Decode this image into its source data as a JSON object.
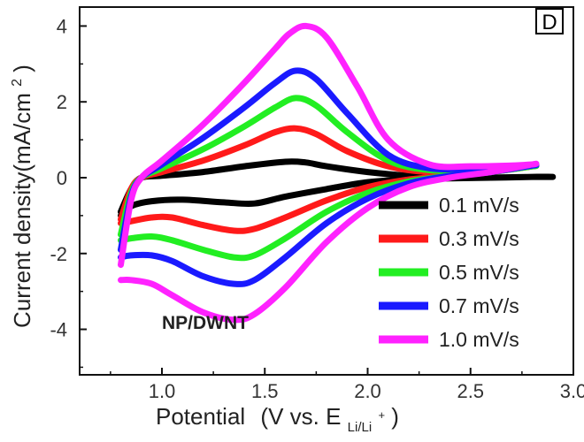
{
  "chart_data": {
    "type": "line",
    "panel_label": "D",
    "annotation": "NP/DWNT",
    "xlabel": "Potential",
    "xlabel_unit_prefix": "(V vs. E",
    "xlabel_unit_sub": "Li/Li",
    "xlabel_unit_sup": "+",
    "xlabel_unit_suffix": ")",
    "ylabel": "Current density(mA/cm",
    "ylabel_sup": "2",
    "ylabel_suffix": ")",
    "xlim": [
      0.6,
      3.0
    ],
    "ylim": [
      -5.2,
      4.5
    ],
    "x_ticks": [
      1.0,
      1.5,
      2.0,
      2.5,
      3.0
    ],
    "x_tick_labels": [
      "1.0",
      "1.5",
      "2.0",
      "2.5",
      "3.0"
    ],
    "y_ticks": [
      -4,
      -2,
      0,
      2,
      4
    ],
    "y_tick_labels": [
      "-4",
      "-2",
      "0",
      "2",
      "4"
    ],
    "grid": false,
    "legend_position": "bottom-right",
    "series": [
      {
        "name": "0.1 mV/s",
        "color": "#000000",
        "anodic": {
          "x": [
            0.8,
            0.85,
            0.9,
            1.0,
            1.2,
            1.4,
            1.6,
            1.7,
            1.8,
            2.0,
            2.2,
            2.4,
            2.6,
            2.8,
            2.9
          ],
          "y": [
            -0.9,
            -0.3,
            0.0,
            0.05,
            0.15,
            0.3,
            0.42,
            0.4,
            0.3,
            0.15,
            0.05,
            0.0,
            0.0,
            0.02,
            0.02
          ]
        },
        "cathodic": {
          "x": [
            2.8,
            2.6,
            2.4,
            2.2,
            2.0,
            1.8,
            1.6,
            1.45,
            1.3,
            1.1,
            0.95,
            0.85,
            0.8
          ],
          "y": [
            0.02,
            0.0,
            -0.02,
            -0.05,
            -0.12,
            -0.3,
            -0.5,
            -0.68,
            -0.65,
            -0.58,
            -0.62,
            -0.75,
            -1.0
          ]
        }
      },
      {
        "name": "0.3 mV/s",
        "color": "#ff1a1a",
        "anodic": {
          "x": [
            0.8,
            0.85,
            0.9,
            1.0,
            1.2,
            1.4,
            1.55,
            1.65,
            1.75,
            1.9,
            2.1,
            2.3,
            2.5,
            2.7,
            2.8
          ],
          "y": [
            -1.1,
            -0.3,
            0.0,
            0.15,
            0.45,
            0.85,
            1.2,
            1.3,
            1.15,
            0.7,
            0.3,
            0.15,
            0.2,
            0.25,
            0.3
          ]
        },
        "cathodic": {
          "x": [
            2.8,
            2.6,
            2.4,
            2.2,
            2.0,
            1.8,
            1.6,
            1.45,
            1.35,
            1.2,
            1.05,
            0.95,
            0.85,
            0.8
          ],
          "y": [
            0.3,
            0.15,
            0.05,
            -0.05,
            -0.25,
            -0.6,
            -1.05,
            -1.35,
            -1.4,
            -1.25,
            -1.05,
            -1.05,
            -1.15,
            -1.2
          ]
        }
      },
      {
        "name": "0.5 mV/s",
        "color": "#22ee22",
        "anodic": {
          "x": [
            0.8,
            0.85,
            0.9,
            1.0,
            1.2,
            1.4,
            1.55,
            1.65,
            1.75,
            1.9,
            2.1,
            2.3,
            2.5,
            2.7,
            2.8
          ],
          "y": [
            -1.5,
            -0.4,
            0.0,
            0.25,
            0.75,
            1.35,
            1.85,
            2.1,
            1.9,
            1.2,
            0.45,
            0.2,
            0.22,
            0.28,
            0.3
          ]
        },
        "cathodic": {
          "x": [
            2.8,
            2.6,
            2.4,
            2.2,
            2.0,
            1.8,
            1.6,
            1.45,
            1.35,
            1.2,
            1.05,
            0.95,
            0.85,
            0.8
          ],
          "y": [
            0.3,
            0.15,
            0.05,
            -0.1,
            -0.4,
            -0.9,
            -1.6,
            -2.05,
            -2.1,
            -1.9,
            -1.65,
            -1.55,
            -1.6,
            -1.65
          ]
        }
      },
      {
        "name": "0.7 mV/s",
        "color": "#1a1aff",
        "anodic": {
          "x": [
            0.8,
            0.85,
            0.9,
            1.0,
            1.2,
            1.4,
            1.55,
            1.65,
            1.75,
            1.9,
            2.1,
            2.3,
            2.5,
            2.7,
            2.8
          ],
          "y": [
            -1.9,
            -0.5,
            0.0,
            0.35,
            1.05,
            1.85,
            2.5,
            2.82,
            2.6,
            1.7,
            0.6,
            0.25,
            0.25,
            0.3,
            0.32
          ]
        },
        "cathodic": {
          "x": [
            2.8,
            2.6,
            2.4,
            2.2,
            2.0,
            1.8,
            1.6,
            1.45,
            1.35,
            1.2,
            1.05,
            0.95,
            0.85,
            0.8
          ],
          "y": [
            0.32,
            0.15,
            0.05,
            -0.15,
            -0.55,
            -1.2,
            -2.1,
            -2.7,
            -2.8,
            -2.6,
            -2.2,
            -2.05,
            -2.05,
            -2.1
          ]
        }
      },
      {
        "name": "1.0 mV/s",
        "color": "#ff22ff",
        "anodic": {
          "x": [
            0.8,
            0.85,
            0.9,
            1.0,
            1.2,
            1.4,
            1.55,
            1.62,
            1.7,
            1.8,
            1.95,
            2.1,
            2.3,
            2.5,
            2.7,
            2.8
          ],
          "y": [
            -2.3,
            -0.6,
            0.0,
            0.45,
            1.4,
            2.5,
            3.4,
            3.8,
            4.0,
            3.7,
            2.4,
            1.0,
            0.35,
            0.3,
            0.32,
            0.35
          ]
        },
        "cathodic": {
          "x": [
            2.8,
            2.6,
            2.4,
            2.2,
            2.0,
            1.8,
            1.6,
            1.45,
            1.35,
            1.2,
            1.05,
            0.95,
            0.85,
            0.8
          ],
          "y": [
            0.35,
            0.15,
            0.0,
            -0.25,
            -0.8,
            -1.7,
            -2.9,
            -3.6,
            -3.75,
            -3.55,
            -3.1,
            -2.8,
            -2.7,
            -2.7
          ]
        }
      }
    ]
  }
}
